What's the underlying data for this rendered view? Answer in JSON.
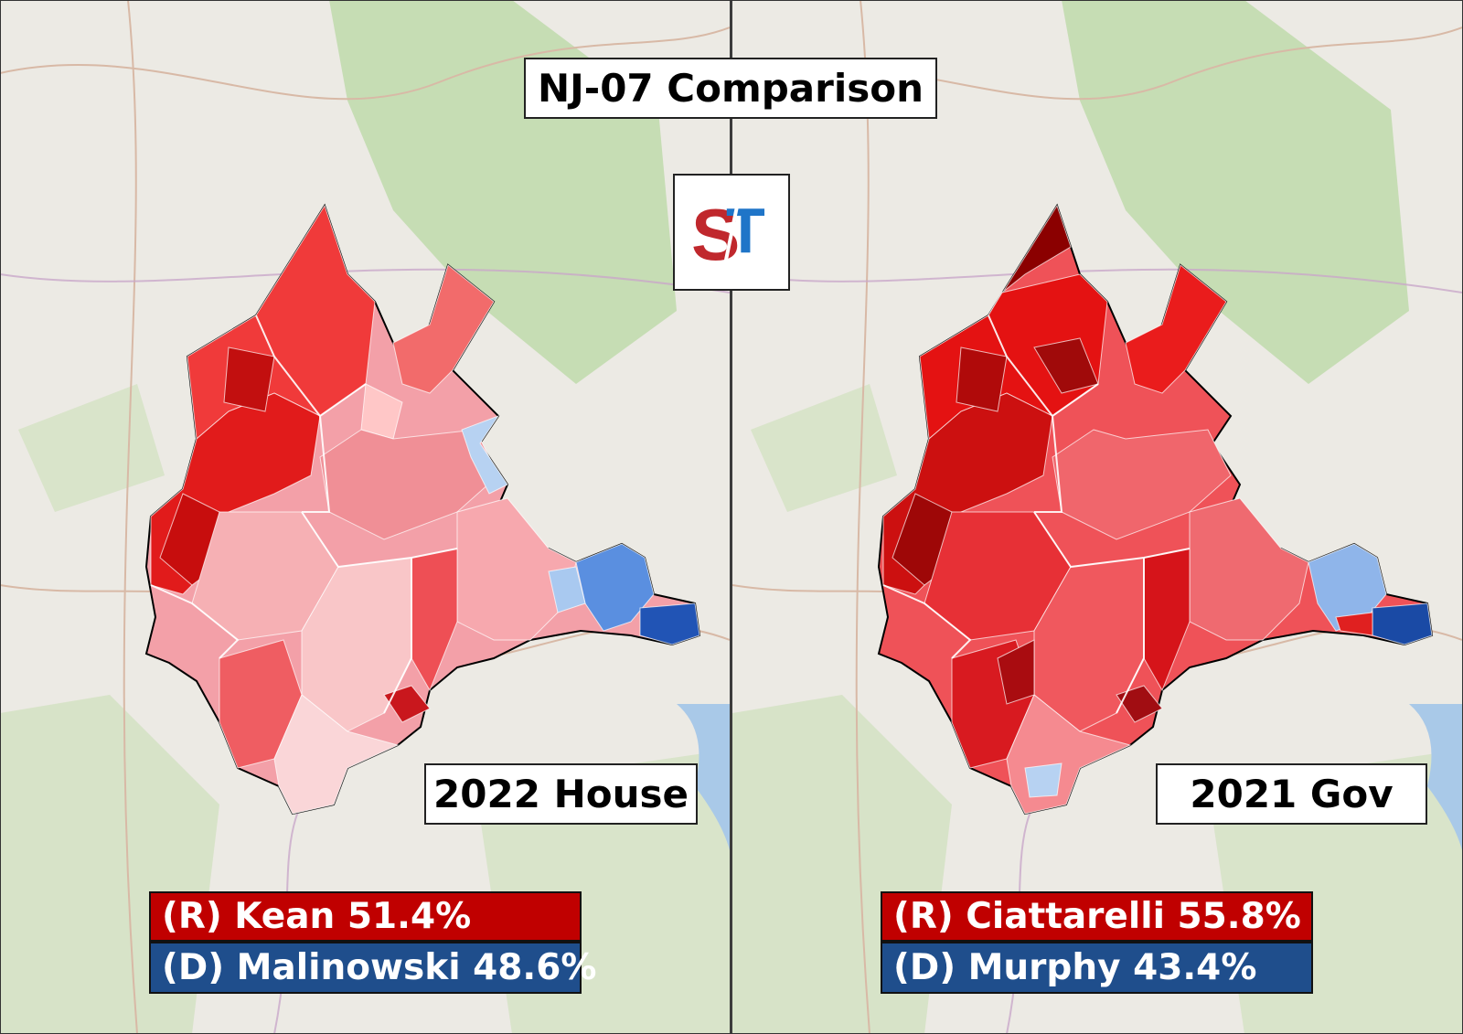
{
  "title": "NJ-07 Comparison",
  "logo": {
    "text_left": "S",
    "text_right": "T",
    "colors": {
      "left": "#c0282d",
      "right": "#1f75c8"
    }
  },
  "colors": {
    "republican": "#c00000",
    "democrat": "#1f4e8c",
    "map_background": "#eceae4"
  },
  "panels": [
    {
      "label": "2022 House",
      "results": [
        {
          "party": "R",
          "text": "(R) Kean 51.4%"
        },
        {
          "party": "D",
          "text": "(D) Malinowski 48.6%"
        }
      ]
    },
    {
      "label": "2021 Gov",
      "results": [
        {
          "party": "R",
          "text": "(R) Ciattarelli 55.8%"
        },
        {
          "party": "D",
          "text": "(D) Murphy 43.4%"
        }
      ]
    }
  ]
}
